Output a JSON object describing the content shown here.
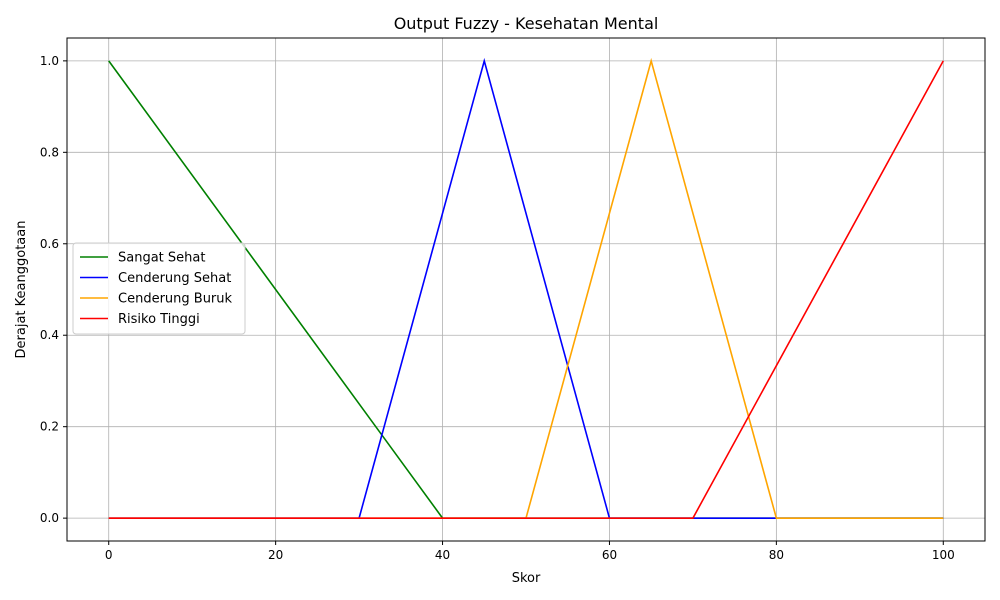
{
  "chart_data": {
    "type": "line",
    "title": "Output Fuzzy - Kesehatan Mental",
    "xlabel": "Skor",
    "ylabel": "Derajat Keanggotaan",
    "xlim": [
      -5,
      105
    ],
    "ylim": [
      -0.05,
      1.05
    ],
    "xticks": [
      0,
      20,
      40,
      60,
      80,
      100
    ],
    "yticks": [
      0.0,
      0.2,
      0.4,
      0.6,
      0.8,
      1.0
    ],
    "xtick_labels": [
      "0",
      "20",
      "40",
      "60",
      "80",
      "100"
    ],
    "ytick_labels": [
      "0.0",
      "0.2",
      "0.4",
      "0.6",
      "0.8",
      "1.0"
    ],
    "grid": true,
    "legend_position": "center-left",
    "series": [
      {
        "name": "Sangat Sehat",
        "color": "#008000",
        "x": [
          0,
          40,
          100
        ],
        "y": [
          1,
          0,
          0
        ]
      },
      {
        "name": "Cenderung Sehat",
        "color": "#0000ff",
        "x": [
          0,
          30,
          45,
          60,
          100
        ],
        "y": [
          0,
          0,
          1,
          0,
          0
        ]
      },
      {
        "name": "Cenderung Buruk",
        "color": "#ffa500",
        "x": [
          0,
          50,
          65,
          80,
          100
        ],
        "y": [
          0,
          0,
          1,
          0,
          0
        ]
      },
      {
        "name": "Risiko Tinggi",
        "color": "#ff0000",
        "x": [
          0,
          70,
          100
        ],
        "y": [
          0,
          0,
          1
        ]
      }
    ]
  }
}
